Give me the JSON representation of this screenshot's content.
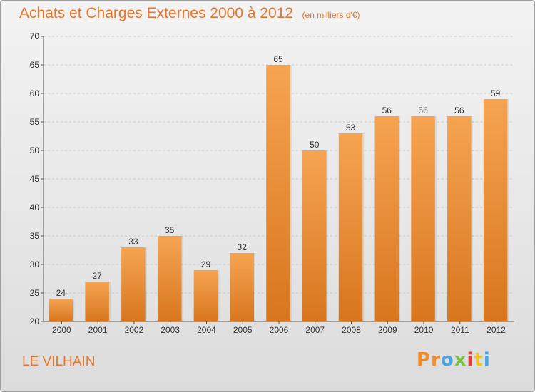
{
  "header": {
    "title": "Achats et Charges Externes 2000 à 2012",
    "unit": "(en milliers d'€)"
  },
  "footer": {
    "commune": "LE VILHAIN",
    "brand_letters": [
      "P",
      "r",
      "o",
      "x",
      "i",
      "t",
      "i"
    ]
  },
  "colors": {
    "accent": "#e8742a",
    "bar_top": "#f6a452",
    "bar_bottom": "#d8761e",
    "brand": [
      "#f08a2c",
      "#f08a2c",
      "#4aa3df",
      "#7cc242",
      "#e53b3b",
      "#f0c419",
      "#4aa3df"
    ]
  },
  "chart_data": {
    "type": "bar",
    "title": "Achats et Charges Externes 2000 à 2012",
    "subtitle": "(en milliers d'€)",
    "xlabel": "",
    "ylabel": "",
    "categories": [
      "2000",
      "2001",
      "2002",
      "2003",
      "2004",
      "2005",
      "2006",
      "2007",
      "2008",
      "2009",
      "2010",
      "2011",
      "2012"
    ],
    "values": [
      24,
      27,
      33,
      35,
      29,
      32,
      65,
      50,
      53,
      56,
      56,
      56,
      59
    ],
    "ylim": [
      20,
      70
    ],
    "yticks": [
      20,
      25,
      30,
      35,
      40,
      45,
      50,
      55,
      60,
      65,
      70
    ],
    "grid": true,
    "data_labels": true
  }
}
